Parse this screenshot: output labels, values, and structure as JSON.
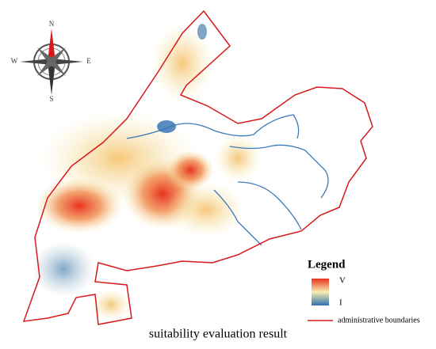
{
  "compass": {
    "north": "N",
    "east": "E",
    "south": "S",
    "west": "W"
  },
  "legend": {
    "title": "Legend",
    "high": "V",
    "low": "I",
    "boundary": "administrative boundaries"
  },
  "caption": "suitability evaluation result"
}
